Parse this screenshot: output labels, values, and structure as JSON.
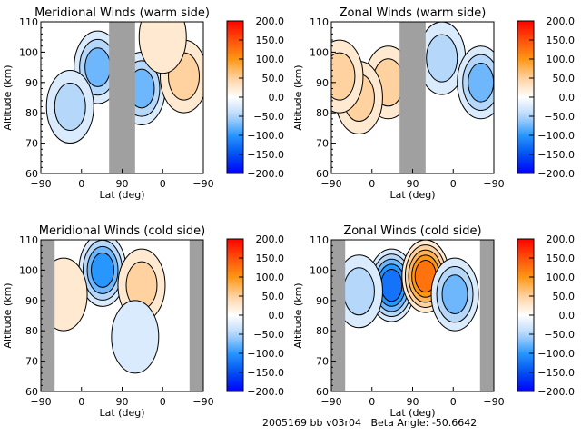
{
  "chart_data": [
    {
      "type": "heatmap",
      "title": "Meridional Winds (warm side)",
      "xlabel": "Lat (deg)",
      "ylabel": "Altitude (km)",
      "xticks": [
        "-90",
        "0",
        "90",
        "0",
        "-90"
      ],
      "yticks": [
        110,
        100,
        90,
        80,
        70,
        60
      ],
      "ylim": [
        60,
        110
      ],
      "colorbar": {
        "ticks": [
          "200.0",
          "150.0",
          "100.0",
          "50.0",
          "0.0",
          "-50.0",
          "-100.0",
          "-150.0",
          "-200.0"
        ],
        "range": [
          -200,
          200
        ]
      },
      "data_gaps_lat_fraction": [
        [
          0.42,
          0.58
        ]
      ],
      "features": [
        {
          "lat_frac": 0.35,
          "alt": 95,
          "value": -60
        },
        {
          "lat_frac": 0.62,
          "alt": 88,
          "value": -70
        },
        {
          "lat_frac": 0.88,
          "alt": 92,
          "value": 30
        },
        {
          "lat_frac": 0.18,
          "alt": 82,
          "value": -40
        },
        {
          "lat_frac": 0.75,
          "alt": 105,
          "value": 15
        }
      ]
    },
    {
      "type": "heatmap",
      "title": "Zonal Winds (warm side)",
      "xlabel": "Lat (deg)",
      "ylabel": "Altitude (km)",
      "xticks": [
        "-90",
        "0",
        "90",
        "0",
        "-90"
      ],
      "yticks": [
        110,
        100,
        90,
        80,
        70,
        60
      ],
      "ylim": [
        60,
        110
      ],
      "colorbar": {
        "ticks": [
          "200.0",
          "150.0",
          "100.0",
          "50.0",
          "0.0",
          "-50.0",
          "-100.0",
          "-150.0",
          "-200.0"
        ],
        "range": [
          -200,
          200
        ]
      },
      "data_gaps_lat_fraction": [
        [
          0.42,
          0.58
        ]
      ],
      "features": [
        {
          "lat_frac": 0.35,
          "alt": 90,
          "value": 40
        },
        {
          "lat_frac": 0.68,
          "alt": 98,
          "value": -50
        },
        {
          "lat_frac": 0.92,
          "alt": 90,
          "value": -60
        },
        {
          "lat_frac": 0.17,
          "alt": 85,
          "value": 35
        },
        {
          "lat_frac": 0.05,
          "alt": 92,
          "value": 30
        }
      ]
    },
    {
      "type": "heatmap",
      "title": "Meridional Winds (cold side)",
      "xlabel": "Lat (deg)",
      "ylabel": "Altitude (km)",
      "xticks": [
        "-90",
        "0",
        "90",
        "0",
        "-90"
      ],
      "yticks": [
        110,
        100,
        90,
        80,
        70,
        60
      ],
      "ylim": [
        60,
        110
      ],
      "colorbar": {
        "ticks": [
          "200.0",
          "150.0",
          "100.0",
          "50.0",
          "0.0",
          "-50.0",
          "-100.0",
          "-150.0",
          "-200.0"
        ],
        "range": [
          -200,
          200
        ]
      },
      "data_gaps_lat_fraction": [
        [
          0.0,
          0.085
        ],
        [
          0.915,
          1.0
        ]
      ],
      "features": [
        {
          "lat_frac": 0.38,
          "alt": 100,
          "value": -80
        },
        {
          "lat_frac": 0.62,
          "alt": 95,
          "value": 30
        },
        {
          "lat_frac": 0.58,
          "alt": 78,
          "value": -20
        },
        {
          "lat_frac": 0.14,
          "alt": 92,
          "value": 15
        }
      ]
    },
    {
      "type": "heatmap",
      "title": "Zonal Winds (cold side)",
      "xlabel": "Lat (deg)",
      "ylabel": "Altitude (km)",
      "xticks": [
        "-90",
        "0",
        "90",
        "0",
        "-90"
      ],
      "yticks": [
        110,
        100,
        90,
        80,
        70,
        60
      ],
      "ylim": [
        60,
        110
      ],
      "colorbar": {
        "ticks": [
          "200.0",
          "150.0",
          "100.0",
          "50.0",
          "0.0",
          "-50.0",
          "-100.0",
          "-150.0",
          "-200.0"
        ],
        "range": [
          -200,
          200
        ]
      },
      "data_gaps_lat_fraction": [
        [
          0.0,
          0.085
        ],
        [
          0.915,
          1.0
        ]
      ],
      "features": [
        {
          "lat_frac": 0.37,
          "alt": 95,
          "value": -120
        },
        {
          "lat_frac": 0.58,
          "alt": 98,
          "value": 110
        },
        {
          "lat_frac": 0.76,
          "alt": 92,
          "value": -60
        },
        {
          "lat_frac": 0.17,
          "alt": 93,
          "value": -40
        }
      ]
    }
  ],
  "footer": "2005169 bb v03r04   Beta Angle: -50.6642"
}
